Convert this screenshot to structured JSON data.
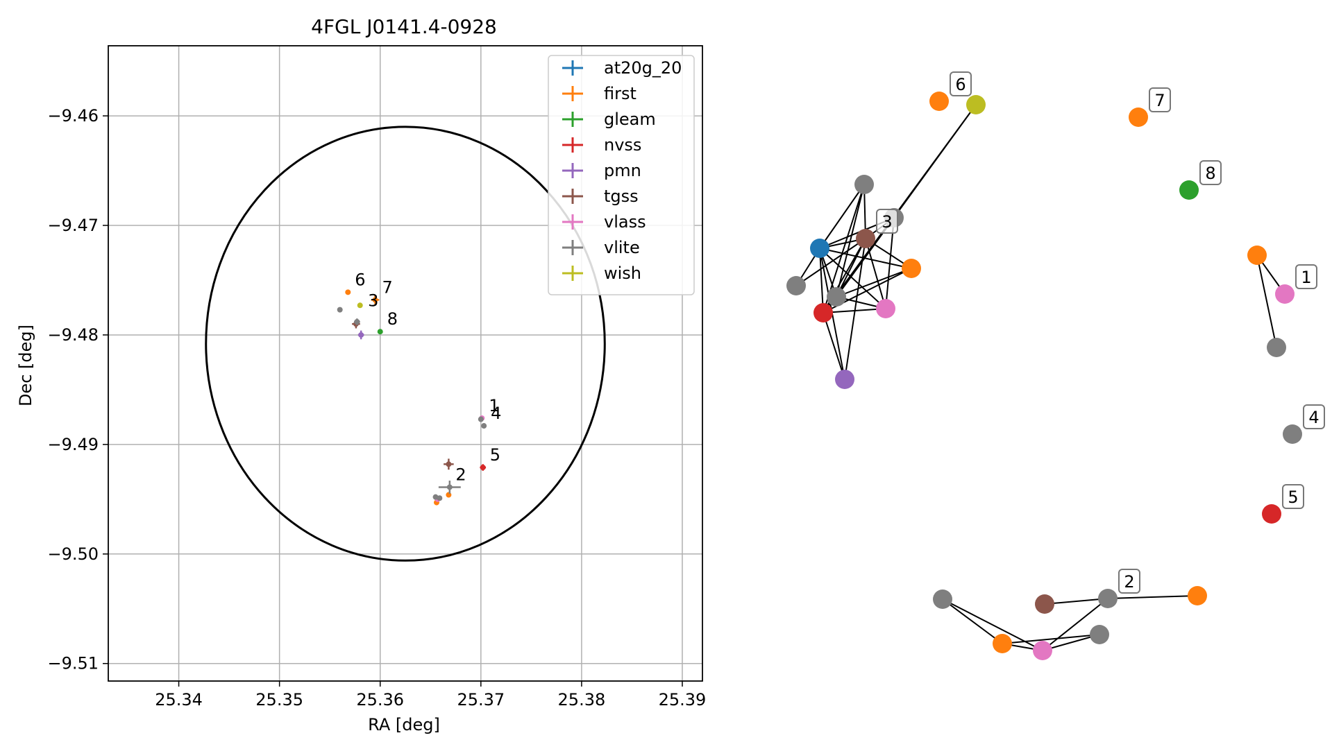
{
  "chart_data": [
    {
      "type": "scatter",
      "title": "4FGL J0141.4-0928",
      "xlabel": "RA [deg]",
      "ylabel": "Dec [deg]",
      "xlim": [
        25.333,
        25.392
      ],
      "ylim": [
        -9.5116,
        -9.4536
      ],
      "xticks": [
        25.34,
        25.35,
        25.36,
        25.37,
        25.38,
        25.39
      ],
      "xtick_labels": [
        "25.34",
        "25.35",
        "25.36",
        "25.37",
        "25.38",
        "25.39"
      ],
      "yticks": [
        -9.46,
        -9.47,
        -9.48,
        -9.49,
        -9.5,
        -9.51
      ],
      "ytick_labels": [
        "−9.46",
        "−9.47",
        "−9.48",
        "−9.49",
        "−9.50",
        "−9.51"
      ],
      "grid": true,
      "legend_position": "top-right",
      "circle": {
        "ra": 25.3625,
        "dec": -9.4808,
        "radius": 0.0198
      },
      "series": [
        {
          "name": "at20g_20",
          "color": "#1f77b4",
          "points": []
        },
        {
          "name": "first",
          "color": "#ff7f0e",
          "points": [
            {
              "x": 25.3568,
              "y": -9.4761,
              "ex": 0.0002,
              "ey": 0.0002
            },
            {
              "x": 25.3595,
              "y": -9.4768,
              "ex": 0.0004,
              "ey": 0.0004
            },
            {
              "x": 25.3668,
              "y": -9.4946,
              "ex": 0.0002,
              "ey": 0.0002
            },
            {
              "x": 25.3656,
              "y": -9.4953,
              "ex": 0.0002,
              "ey": 0.0002
            }
          ]
        },
        {
          "name": "gleam",
          "color": "#2ca02c",
          "points": [
            {
              "x": 25.36,
              "y": -9.4797,
              "ex": 0.0001,
              "ey": 0.0001
            }
          ]
        },
        {
          "name": "nvss",
          "color": "#d62728",
          "points": [
            {
              "x": 25.3702,
              "y": -9.4921,
              "ex": 0.0003,
              "ey": 0.0003
            }
          ]
        },
        {
          "name": "pmn",
          "color": "#9467bd",
          "points": [
            {
              "x": 25.3581,
              "y": -9.48,
              "ex": 0.0003,
              "ey": 0.0004
            }
          ]
        },
        {
          "name": "tgss",
          "color": "#8c564b",
          "points": [
            {
              "x": 25.3576,
              "y": -9.479,
              "ex": 0.0004,
              "ey": 0.0004
            },
            {
              "x": 25.3668,
              "y": -9.4918,
              "ex": 0.0005,
              "ey": 0.0005
            }
          ]
        },
        {
          "name": "vlass",
          "color": "#e377c2",
          "points": [
            {
              "x": 25.3701,
              "y": -9.4876,
              "ex": 0.0001,
              "ey": 0.0001
            },
            {
              "x": 25.3657,
              "y": -9.495,
              "ex": 0.0002,
              "ey": 0.0002
            }
          ]
        },
        {
          "name": "vlite",
          "color": "#7f7f7f",
          "points": [
            {
              "x": 25.356,
              "y": -9.4777,
              "ex": 0.0001,
              "ey": 0.0001
            },
            {
              "x": 25.3577,
              "y": -9.4788,
              "ex": 0.0003,
              "ey": 0.0003
            },
            {
              "x": 25.37,
              "y": -9.4877,
              "ex": 0.0001,
              "ey": 0.0001
            },
            {
              "x": 25.3703,
              "y": -9.4883,
              "ex": 0.0001,
              "ey": 0.0001
            },
            {
              "x": 25.3669,
              "y": -9.4939,
              "ex": 0.0011,
              "ey": 0.0006
            },
            {
              "x": 25.3655,
              "y": -9.4948,
              "ex": 0.0002,
              "ey": 0.0002
            },
            {
              "x": 25.3659,
              "y": -9.4949,
              "ex": 0.0002,
              "ey": 0.0002
            }
          ]
        },
        {
          "name": "wish",
          "color": "#bcbd22",
          "points": [
            {
              "x": 25.358,
              "y": -9.4773,
              "ex": 0.0002,
              "ey": 0.0002
            }
          ]
        }
      ],
      "annotations": [
        {
          "text": "6",
          "x": 25.3568,
          "y": -9.4761
        },
        {
          "text": "7",
          "x": 25.3595,
          "y": -9.4768
        },
        {
          "text": "3",
          "x": 25.3581,
          "y": -9.478
        },
        {
          "text": "8",
          "x": 25.36,
          "y": -9.4797
        },
        {
          "text": "1",
          "x": 25.3701,
          "y": -9.4876
        },
        {
          "text": "4",
          "x": 25.3703,
          "y": -9.4883
        },
        {
          "text": "5",
          "x": 25.3702,
          "y": -9.4921
        },
        {
          "text": "2",
          "x": 25.3668,
          "y": -9.4939
        }
      ]
    },
    {
      "type": "network",
      "nodes": [
        {
          "id": "c3_tgss",
          "color": "#8c564b",
          "label": "3"
        },
        {
          "id": "c3_at20g",
          "color": "#1f77b4"
        },
        {
          "id": "c3_vlite_a",
          "color": "#7f7f7f"
        },
        {
          "id": "c3_vlite_b",
          "color": "#7f7f7f"
        },
        {
          "id": "c3_vlite_c",
          "color": "#7f7f7f"
        },
        {
          "id": "c3_vlite_d",
          "color": "#7f7f7f"
        },
        {
          "id": "c3_first",
          "color": "#ff7f0e"
        },
        {
          "id": "c3_vlass",
          "color": "#e377c2"
        },
        {
          "id": "c3_nvss",
          "color": "#d62728"
        },
        {
          "id": "c3_pmn",
          "color": "#9467bd"
        },
        {
          "id": "c3_wish",
          "color": "#bcbd22"
        },
        {
          "id": "c6_first",
          "color": "#ff7f0e",
          "label": "6"
        },
        {
          "id": "c7_first",
          "color": "#ff7f0e",
          "label": "7"
        },
        {
          "id": "c8_gleam",
          "color": "#2ca02c",
          "label": "8"
        },
        {
          "id": "c1_first",
          "color": "#ff7f0e"
        },
        {
          "id": "c1_vlass",
          "color": "#e377c2",
          "label": "1"
        },
        {
          "id": "c1_vlite",
          "color": "#7f7f7f"
        },
        {
          "id": "c4_vlite",
          "color": "#7f7f7f",
          "label": "4"
        },
        {
          "id": "c5_nvss",
          "color": "#d62728",
          "label": "5"
        },
        {
          "id": "c2_vlite_a",
          "color": "#7f7f7f",
          "label": "2"
        },
        {
          "id": "c2_tgss",
          "color": "#8c564b"
        },
        {
          "id": "c2_first_a",
          "color": "#ff7f0e"
        },
        {
          "id": "c2_vlite_b",
          "color": "#7f7f7f"
        },
        {
          "id": "c2_first_b",
          "color": "#ff7f0e"
        },
        {
          "id": "c2_vlass",
          "color": "#e377c2"
        },
        {
          "id": "c2_vlite_c",
          "color": "#7f7f7f"
        }
      ],
      "edges": [
        [
          "c3_at20g",
          "c3_tgss"
        ],
        [
          "c3_at20g",
          "c3_vlite_a"
        ],
        [
          "c3_at20g",
          "c3_vlite_b"
        ],
        [
          "c3_at20g",
          "c3_vlite_c"
        ],
        [
          "c3_at20g",
          "c3_vlite_d"
        ],
        [
          "c3_at20g",
          "c3_first"
        ],
        [
          "c3_at20g",
          "c3_vlass"
        ],
        [
          "c3_at20g",
          "c3_nvss"
        ],
        [
          "c3_at20g",
          "c3_pmn"
        ],
        [
          "c3_tgss",
          "c3_vlite_a"
        ],
        [
          "c3_tgss",
          "c3_vlite_b"
        ],
        [
          "c3_tgss",
          "c3_vlite_c"
        ],
        [
          "c3_tgss",
          "c3_vlite_d"
        ],
        [
          "c3_tgss",
          "c3_first"
        ],
        [
          "c3_tgss",
          "c3_vlass"
        ],
        [
          "c3_tgss",
          "c3_nvss"
        ],
        [
          "c3_tgss",
          "c3_pmn"
        ],
        [
          "c3_vlite_a",
          "c3_vlite_d"
        ],
        [
          "c3_vlite_a",
          "c3_nvss"
        ],
        [
          "c3_vlite_b",
          "c3_vlite_d"
        ],
        [
          "c3_vlite_b",
          "c3_nvss"
        ],
        [
          "c3_vlite_b",
          "c3_vlass"
        ],
        [
          "c3_vlite_d",
          "c3_first"
        ],
        [
          "c3_vlite_d",
          "c3_vlass"
        ],
        [
          "c3_vlite_d",
          "c3_wish"
        ],
        [
          "c3_nvss",
          "c3_first"
        ],
        [
          "c3_nvss",
          "c3_vlass"
        ],
        [
          "c3_nvss",
          "c3_pmn"
        ],
        [
          "c3_nvss",
          "c3_wish"
        ],
        [
          "c1_first",
          "c1_vlass"
        ],
        [
          "c1_first",
          "c1_vlite"
        ],
        [
          "c2_tgss",
          "c2_vlite_a"
        ],
        [
          "c2_vlite_a",
          "c2_first_a"
        ],
        [
          "c2_vlite_a",
          "c2_vlass"
        ],
        [
          "c2_vlite_b",
          "c2_first_b"
        ],
        [
          "c2_vlite_b",
          "c2_vlass"
        ],
        [
          "c2_first_b",
          "c2_vlass"
        ],
        [
          "c2_first_b",
          "c2_vlite_c"
        ],
        [
          "c2_vlass",
          "c2_vlite_c"
        ]
      ]
    }
  ]
}
